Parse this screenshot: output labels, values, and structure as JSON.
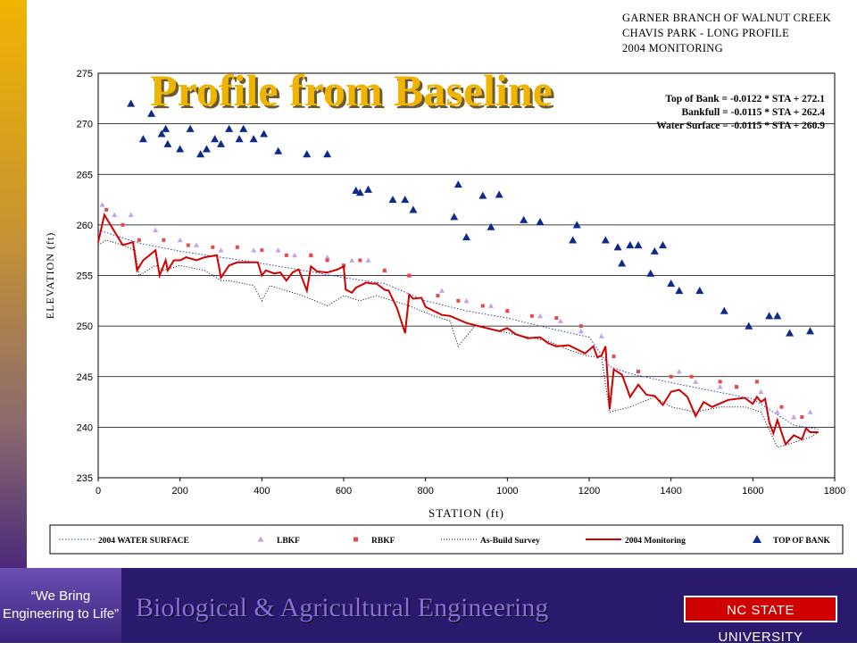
{
  "slide": {
    "title": "Profile from Baseline",
    "header_lines": [
      "GARNER BRANCH OF WALNUT CREEK",
      "CHAVIS PARK - LONG PROFILE",
      "2004 MONITORING"
    ],
    "equations": [
      "Top of Bank = -0.0122 * STA + 272.1",
      "Bankfull = -0.0115 * STA + 262.4",
      "Water Surface = -0.0115 * STA + 260.9"
    ],
    "slogan": "“We Bring Engineering to Life”",
    "department": "Biological & Agricultural Engineering",
    "logo_text": "NC STATE UNIVERSITY",
    "colors": {
      "brand_purple": "#2a1a6e",
      "title_gold": "#f0b400",
      "logo_red": "#d00000"
    }
  },
  "chart_data": {
    "type": "line",
    "xlabel": "STATION (ft)",
    "ylabel": "ELEVATION (ft)",
    "xlim": [
      0,
      1800
    ],
    "ylim": [
      235,
      275
    ],
    "xticks": [
      0,
      200,
      400,
      600,
      800,
      1000,
      1200,
      1400,
      1600,
      1800
    ],
    "yticks": [
      235,
      240,
      245,
      250,
      255,
      260,
      265,
      270,
      275
    ],
    "grid": "horizontal",
    "legend_position": "bottom",
    "legend": [
      "2004 WATER SURFACE",
      "LBKF",
      "RBKF",
      "As-Build Survey",
      "2004 Monitoring",
      "TOP OF BANK"
    ],
    "series": [
      {
        "name": "2004 WATER SURFACE",
        "style": "dotted-blue",
        "x": [
          0,
          100,
          200,
          300,
          400,
          500,
          600,
          700,
          800,
          900,
          1000,
          1100,
          1200,
          1250,
          1300,
          1400,
          1500,
          1600,
          1700,
          1760
        ],
        "y": [
          259.5,
          258.2,
          257.4,
          256.8,
          256.2,
          255.5,
          254.8,
          254.2,
          252.5,
          251.5,
          250.8,
          249.8,
          248.9,
          246.0,
          245.3,
          244.4,
          243.6,
          242.8,
          240.2,
          239.8
        ]
      },
      {
        "name": "LBKF",
        "style": "marker-triangle-violet",
        "x": [
          10,
          40,
          80,
          140,
          200,
          240,
          300,
          380,
          440,
          480,
          520,
          560,
          620,
          660,
          700,
          760,
          840,
          900,
          960,
          1000,
          1080,
          1130,
          1180,
          1230,
          1420,
          1460,
          1520,
          1560,
          1620,
          1660,
          1700,
          1740
        ],
        "y": [
          262,
          261,
          261,
          259.5,
          258.5,
          258,
          257.5,
          257.5,
          257.5,
          257,
          257,
          256.8,
          256.5,
          256.5,
          255.5,
          255,
          253.5,
          252.5,
          252,
          251.5,
          251,
          250.5,
          249.5,
          249,
          245.5,
          244.5,
          244,
          244,
          243.5,
          241.5,
          241,
          241.5
        ]
      },
      {
        "name": "RBKF",
        "style": "marker-square-red",
        "x": [
          20,
          60,
          100,
          160,
          220,
          280,
          340,
          400,
          460,
          520,
          560,
          600,
          640,
          700,
          760,
          830,
          880,
          940,
          1000,
          1060,
          1120,
          1180,
          1260,
          1320,
          1400,
          1450,
          1520,
          1560,
          1610,
          1670,
          1720
        ],
        "y": [
          261.5,
          260,
          258.5,
          258.5,
          258,
          257.8,
          257.8,
          257.5,
          257,
          257,
          256.5,
          256,
          256.5,
          255.5,
          255,
          253,
          252.5,
          252,
          251.5,
          251,
          250.8,
          250,
          247,
          245.5,
          245,
          245,
          244.5,
          244,
          244.5,
          242,
          241
        ]
      },
      {
        "name": "As-Build Survey",
        "style": "dotted-black",
        "x": [
          0,
          20,
          60,
          90,
          100,
          140,
          160,
          200,
          260,
          300,
          320,
          380,
          400,
          420,
          460,
          500,
          560,
          600,
          640,
          680,
          720,
          760,
          820,
          860,
          880,
          920,
          980,
          1040,
          1100,
          1160,
          1200,
          1230,
          1250,
          1300,
          1360,
          1400,
          1460,
          1520,
          1580,
          1620,
          1660,
          1700,
          1740,
          1760
        ],
        "y": [
          258,
          258.5,
          258,
          257.5,
          255,
          256,
          255.5,
          256,
          255.5,
          254.5,
          254.5,
          254,
          252.5,
          254,
          253.5,
          253,
          252,
          253,
          252.5,
          253,
          252.5,
          252,
          251,
          250.5,
          248,
          250,
          249.5,
          249,
          248.5,
          247.5,
          247,
          247,
          241.5,
          242,
          243,
          242,
          241.5,
          242,
          242,
          241.5,
          238,
          238.5,
          239,
          239.5
        ]
      },
      {
        "name": "2004 Monitoring",
        "style": "solid-red",
        "x": [
          0,
          15,
          30,
          60,
          85,
          95,
          110,
          140,
          150,
          165,
          170,
          185,
          200,
          215,
          240,
          260,
          290,
          300,
          320,
          340,
          390,
          400,
          410,
          430,
          445,
          460,
          475,
          490,
          510,
          520,
          535,
          560,
          585,
          600,
          605,
          620,
          630,
          650,
          655,
          670,
          680,
          700,
          710,
          730,
          750,
          760,
          770,
          790,
          800,
          840,
          860,
          900,
          940,
          980,
          1000,
          1020,
          1050,
          1080,
          1100,
          1120,
          1150,
          1180,
          1190,
          1210,
          1220,
          1230,
          1240,
          1250,
          1260,
          1280,
          1300,
          1320,
          1340,
          1360,
          1380,
          1400,
          1420,
          1440,
          1460,
          1480,
          1500,
          1540,
          1580,
          1600,
          1610,
          1620,
          1630,
          1640,
          1650,
          1660,
          1680,
          1700,
          1720,
          1730,
          1740,
          1760
        ],
        "y": [
          258.3,
          261,
          260,
          258,
          258.3,
          255.5,
          256.5,
          257.5,
          255,
          256.5,
          255.5,
          256.5,
          256.5,
          256.8,
          256.5,
          256.8,
          257,
          254.8,
          256,
          256.3,
          256.3,
          255,
          255.5,
          255.2,
          255.3,
          254.5,
          255.3,
          255.6,
          253.5,
          255.9,
          255.4,
          255.3,
          255.6,
          255.9,
          253.6,
          253.3,
          253.8,
          254.2,
          254.3,
          254.2,
          254.2,
          253.6,
          253.5,
          251.8,
          249.3,
          253.1,
          252.7,
          252.8,
          251.9,
          251.1,
          251.0,
          250.3,
          249.9,
          249.5,
          249.8,
          249.2,
          248.8,
          248.9,
          248.3,
          248.0,
          248.1,
          247.5,
          247.3,
          248.0,
          246.9,
          247.1,
          248.0,
          241.8,
          245.7,
          245.2,
          243.0,
          244.2,
          243.2,
          243.1,
          242.2,
          243.5,
          243.7,
          243.0,
          241.1,
          242.5,
          242.0,
          242.7,
          242.9,
          242.3,
          243.0,
          242.5,
          242.8,
          240.5,
          239.4,
          240.7,
          238.3,
          239.2,
          238.8,
          239.9,
          239.5,
          239.5
        ]
      },
      {
        "name": "TOP OF BANK",
        "style": "marker-triangle-navy",
        "x": [
          80,
          110,
          130,
          155,
          165,
          170,
          200,
          225,
          250,
          265,
          285,
          300,
          320,
          345,
          355,
          380,
          405,
          440,
          510,
          560,
          630,
          640,
          660,
          720,
          750,
          770,
          870,
          880,
          900,
          940,
          960,
          980,
          1040,
          1080,
          1160,
          1170,
          1240,
          1270,
          1280,
          1300,
          1320,
          1350,
          1360,
          1380,
          1400,
          1420,
          1470,
          1530,
          1590,
          1640,
          1660,
          1690,
          1740
        ],
        "y": [
          272,
          268.5,
          271,
          269,
          269.5,
          268,
          267.5,
          269.5,
          267,
          267.5,
          268.5,
          268,
          269.5,
          268.5,
          269.5,
          268.5,
          269,
          267.3,
          267,
          267,
          263.4,
          263.2,
          263.5,
          262.5,
          262.5,
          261.5,
          260.8,
          264,
          258.8,
          262.9,
          259.8,
          263,
          260.5,
          260.3,
          258.5,
          260,
          258.5,
          257.8,
          256.2,
          258,
          258,
          255.2,
          257.4,
          258,
          254.2,
          253.5,
          253.5,
          251.5,
          250,
          251,
          251,
          249.3,
          249.5
        ]
      }
    ]
  }
}
